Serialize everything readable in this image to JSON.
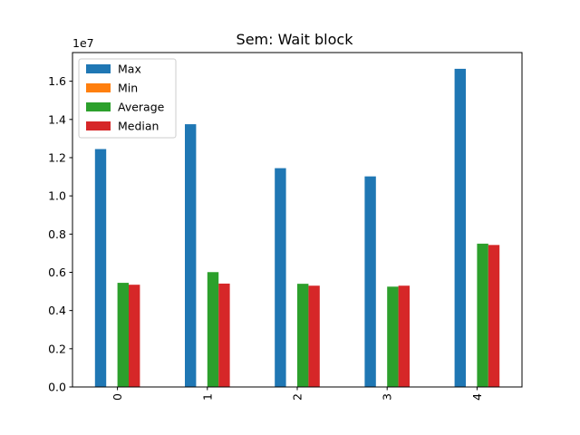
{
  "chart_data": {
    "type": "bar",
    "title": "Sem: Wait block",
    "categories": [
      "0",
      "1",
      "2",
      "3",
      "4"
    ],
    "y_scale_label": "1e7",
    "y_ticks": [
      "0.0",
      "0.2",
      "0.4",
      "0.6",
      "0.8",
      "1.0",
      "1.2",
      "1.4",
      "1.6"
    ],
    "y_tick_values": [
      0,
      0.2,
      0.4,
      0.6,
      0.8,
      1.0,
      1.2,
      1.4,
      1.6
    ],
    "ylim": [
      0,
      1.75
    ],
    "grid": false,
    "legend_position": "top-left",
    "series": [
      {
        "name": "Max",
        "color": "#1f77b4",
        "values": [
          1.245,
          1.375,
          1.145,
          1.102,
          1.665
        ]
      },
      {
        "name": "Min",
        "color": "#ff7f0e",
        "values": [
          0,
          0,
          0,
          0,
          0
        ]
      },
      {
        "name": "Average",
        "color": "#2ca02c",
        "values": [
          0.545,
          0.601,
          0.54,
          0.525,
          0.75
        ]
      },
      {
        "name": "Median",
        "color": "#d62728",
        "values": [
          0.535,
          0.541,
          0.53,
          0.53,
          0.743
        ]
      }
    ]
  }
}
